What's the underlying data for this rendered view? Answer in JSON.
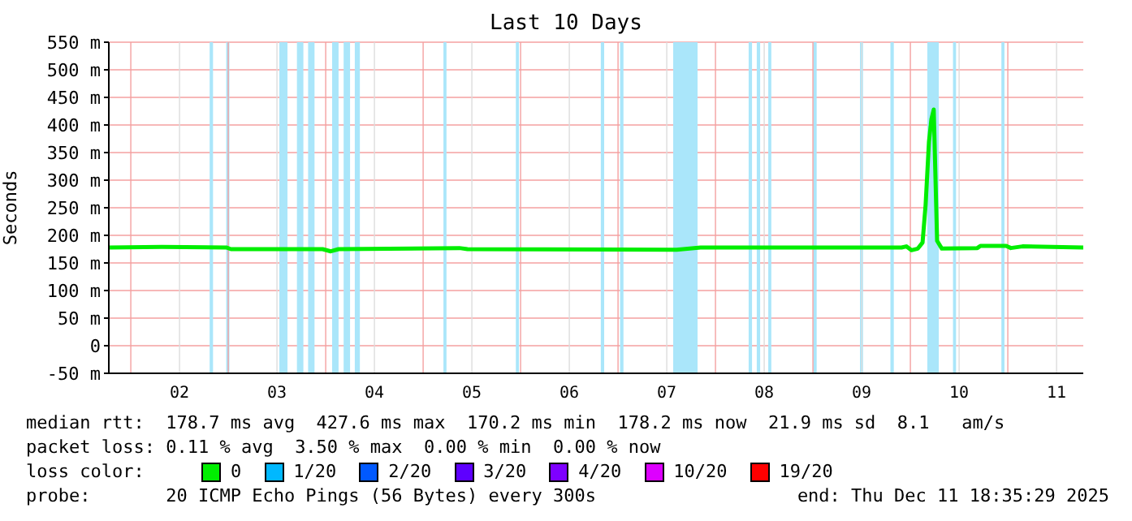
{
  "chart_data": {
    "type": "line",
    "title": "Last 10 Days",
    "ylabel": "Seconds",
    "x": [
      "2025-12-01T18:35",
      "2025-12-02T07:40",
      "2025-12-02T23:30",
      "2025-12-03T00:40",
      "2025-12-03T23:15",
      "2025-12-04T01:15",
      "2025-12-04T03:10",
      "2025-12-05T08:55",
      "2025-12-05T10:55",
      "2025-12-07T14:25",
      "2025-12-07T20:20",
      "2025-12-09T21:50",
      "2025-12-09T23:00",
      "2025-12-10T00:15",
      "2025-12-10T01:50",
      "2025-12-10T03:00",
      "2025-12-10T03:45",
      "2025-12-10T04:35",
      "2025-12-10T05:10",
      "2025-12-10T05:45",
      "2025-12-10T06:35",
      "2025-12-10T07:45",
      "2025-12-10T16:30",
      "2025-12-10T17:15",
      "2025-12-10T23:35",
      "2025-12-11T00:45",
      "2025-12-11T03:35",
      "2025-12-11T18:35"
    ],
    "series": [
      {
        "name": "0",
        "color": "#00ee00",
        "values": [
          178,
          179,
          178,
          175,
          175,
          171,
          175,
          177,
          175,
          174,
          178,
          178,
          180,
          173,
          176,
          187,
          255,
          370,
          410,
          428,
          190,
          176,
          177,
          181,
          181,
          177,
          180,
          178
        ]
      },
      {
        "name": "1/20",
        "color": "#00b8ff",
        "values": [
          null,
          null,
          null,
          null,
          null,
          null,
          null,
          null,
          null,
          null,
          null,
          null,
          null,
          null,
          null,
          null,
          null,
          null,
          null,
          null,
          null,
          null,
          null,
          null,
          null,
          null,
          null,
          null
        ]
      },
      {
        "name": "2/20",
        "color": "#0059ff",
        "values": [
          null,
          null,
          null,
          null,
          null,
          null,
          null,
          null,
          null,
          null,
          null,
          null,
          null,
          null,
          null,
          null,
          null,
          null,
          null,
          null,
          null,
          null,
          null,
          null,
          null,
          null,
          null,
          null
        ]
      },
      {
        "name": "3/20",
        "color": "#5e00ff",
        "values": [
          null,
          null,
          null,
          null,
          null,
          null,
          null,
          null,
          null,
          null,
          null,
          null,
          null,
          null,
          null,
          null,
          null,
          null,
          null,
          null,
          null,
          null,
          null,
          null,
          null,
          null,
          null,
          null
        ]
      },
      {
        "name": "4/20",
        "color": "#7e00ff",
        "values": [
          null,
          null,
          null,
          null,
          null,
          null,
          null,
          null,
          null,
          null,
          null,
          null,
          null,
          null,
          null,
          null,
          null,
          null,
          null,
          null,
          null,
          null,
          null,
          null,
          null,
          null,
          null,
          null
        ]
      },
      {
        "name": "10/20",
        "color": "#dd00ff",
        "values": [
          null,
          null,
          null,
          null,
          null,
          null,
          null,
          null,
          null,
          null,
          null,
          null,
          null,
          null,
          null,
          null,
          null,
          null,
          null,
          null,
          null,
          null,
          null,
          null,
          null,
          null,
          null,
          null
        ]
      },
      {
        "name": "19/20",
        "color": "#ff0000",
        "values": [
          null,
          null,
          null,
          null,
          null,
          null,
          null,
          null,
          null,
          null,
          null,
          null,
          null,
          null,
          null,
          null,
          null,
          null,
          null,
          null,
          null,
          null,
          null,
          null,
          null,
          null,
          null,
          null
        ]
      }
    ],
    "legend": "bottom",
    "legend_title": "loss color:",
    "xlim": [
      "2025-12-01T18:35",
      "2025-12-11T18:35"
    ],
    "xticks": [
      {
        "value": "2025-12-02T00:00",
        "label": null
      },
      {
        "value": "2025-12-02T12:00",
        "label": "02"
      },
      {
        "value": "2025-12-03T00:00",
        "label": null
      },
      {
        "value": "2025-12-03T12:00",
        "label": "03"
      },
      {
        "value": "2025-12-04T00:00",
        "label": null
      },
      {
        "value": "2025-12-04T12:00",
        "label": "04"
      },
      {
        "value": "2025-12-05T00:00",
        "label": null
      },
      {
        "value": "2025-12-05T12:00",
        "label": "05"
      },
      {
        "value": "2025-12-06T00:00",
        "label": null
      },
      {
        "value": "2025-12-06T12:00",
        "label": "06"
      },
      {
        "value": "2025-12-07T00:00",
        "label": null
      },
      {
        "value": "2025-12-07T12:00",
        "label": "07"
      },
      {
        "value": "2025-12-08T00:00",
        "label": null
      },
      {
        "value": "2025-12-08T12:00",
        "label": "08"
      },
      {
        "value": "2025-12-09T00:00",
        "label": null
      },
      {
        "value": "2025-12-09T12:00",
        "label": "09"
      },
      {
        "value": "2025-12-10T00:00",
        "label": null
      },
      {
        "value": "2025-12-10T12:00",
        "label": "10"
      },
      {
        "value": "2025-12-11T00:00",
        "label": null
      },
      {
        "value": "2025-12-11T12:00",
        "label": "11"
      }
    ],
    "ylim": [
      -50,
      550
    ],
    "yticks": [
      {
        "value": -50,
        "label": "-50 m"
      },
      0,
      {
        "value": 50,
        "label": "50 m"
      },
      {
        "value": 100,
        "label": "100 m"
      },
      {
        "value": 150,
        "label": "150 m"
      },
      {
        "value": 200,
        "label": "200 m"
      },
      {
        "value": 250,
        "label": "250 m"
      },
      {
        "value": 300,
        "label": "300 m"
      },
      {
        "value": 350,
        "label": "350 m"
      },
      {
        "value": 400,
        "label": "400 m"
      },
      {
        "value": 450,
        "label": "450 m"
      },
      {
        "value": 500,
        "label": "500 m"
      },
      {
        "value": 550,
        "label": "550 m"
      }
    ],
    "grid": true,
    "bands": [
      {
        "axis": "x",
        "from": "2025-12-02T19:25",
        "to": "2025-12-02T20:15",
        "color": "#aae6fa"
      },
      {
        "axis": "x",
        "from": "2025-12-02T23:30",
        "to": "2025-12-03T00:17",
        "color": "#aae6fa"
      },
      {
        "axis": "x",
        "from": "2025-12-03T12:35",
        "to": "2025-12-03T14:35",
        "color": "#aae6fa"
      },
      {
        "axis": "x",
        "from": "2025-12-03T16:55",
        "to": "2025-12-03T18:30",
        "color": "#aae6fa"
      },
      {
        "axis": "x",
        "from": "2025-12-03T19:40",
        "to": "2025-12-03T21:15",
        "color": "#aae6fa"
      },
      {
        "axis": "x",
        "from": "2025-12-04T01:35",
        "to": "2025-12-04T03:10",
        "color": "#aae6fa"
      },
      {
        "axis": "x",
        "from": "2025-12-04T04:25",
        "to": "2025-12-04T06:00",
        "color": "#aae6fa"
      },
      {
        "axis": "x",
        "from": "2025-12-04T07:10",
        "to": "2025-12-04T08:25",
        "color": "#aae6fa"
      },
      {
        "axis": "x",
        "from": "2025-12-05T05:00",
        "to": "2025-12-05T05:45",
        "color": "#aae6fa"
      },
      {
        "axis": "x",
        "from": "2025-12-05T22:50",
        "to": "2025-12-05T23:35",
        "color": "#aae6fa"
      },
      {
        "axis": "x",
        "from": "2025-12-06T19:45",
        "to": "2025-12-06T20:35",
        "color": "#aae6fa"
      },
      {
        "axis": "x",
        "from": "2025-12-07T00:30",
        "to": "2025-12-07T01:20",
        "color": "#aae6fa"
      },
      {
        "axis": "x",
        "from": "2025-12-07T13:35",
        "to": "2025-12-07T19:35",
        "color": "#aae6fa"
      },
      {
        "axis": "x",
        "from": "2025-12-08T08:10",
        "to": "2025-12-08T09:00",
        "color": "#aae6fa"
      },
      {
        "axis": "x",
        "from": "2025-12-08T10:10",
        "to": "2025-12-08T11:00",
        "color": "#aae6fa"
      },
      {
        "axis": "x",
        "from": "2025-12-08T13:00",
        "to": "2025-12-08T13:45",
        "color": "#aae6fa"
      },
      {
        "axis": "x",
        "from": "2025-12-09T00:05",
        "to": "2025-12-09T00:55",
        "color": "#aae6fa"
      },
      {
        "axis": "x",
        "from": "2025-12-09T11:35",
        "to": "2025-12-09T12:20",
        "color": "#aae6fa"
      },
      {
        "axis": "x",
        "from": "2025-12-09T19:05",
        "to": "2025-12-09T19:55",
        "color": "#aae6fa"
      },
      {
        "axis": "x",
        "from": "2025-12-10T04:10",
        "to": "2025-12-10T07:00",
        "color": "#aae6fa"
      },
      {
        "axis": "x",
        "from": "2025-12-10T10:30",
        "to": "2025-12-10T11:15",
        "color": "#aae6fa"
      },
      {
        "axis": "x",
        "from": "2025-12-10T22:25",
        "to": "2025-12-10T23:10",
        "color": "#aae6fa"
      }
    ],
    "annotations": [
      "median rtt:  178.7 ms avg  427.6 ms max  170.2 ms min  178.2 ms now  21.9 ms sd  8.1   am/s",
      "packet loss: 0.11 % avg  3.50 % max  0.00 % min  0.00 % now",
      "probe:       20 ICMP Echo Pings (56 Bytes) every 300s",
      "end: Thu Dec 11 18:35:29 2025"
    ]
  }
}
